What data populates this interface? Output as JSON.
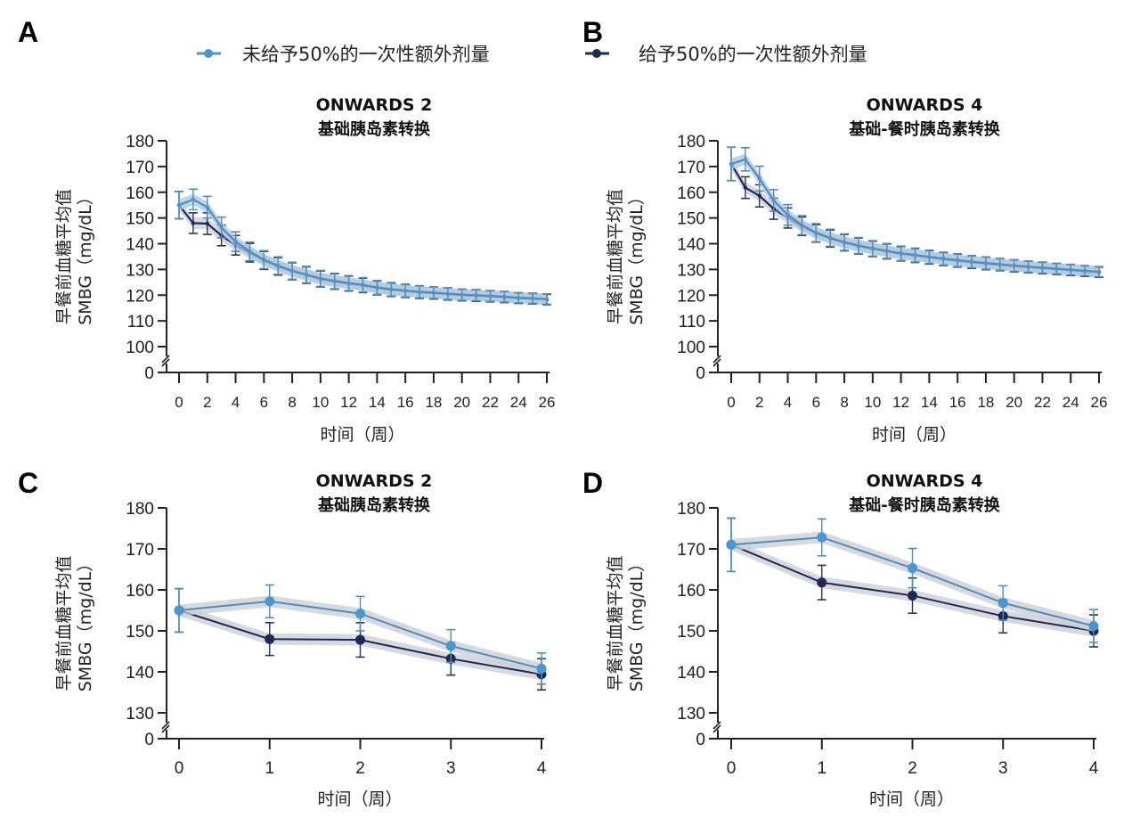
{
  "legend": {
    "items": [
      {
        "label": "未给予50%的一次性额外剂量",
        "color": "#4a96cf",
        "marker": "light-blue-circle"
      },
      {
        "label": "给予50%的一次性额外剂量",
        "color": "#1c2a55",
        "marker": "navy-circle"
      }
    ]
  },
  "colors": {
    "no_dose": "#4a96cf",
    "no_dose_line": "#4f8dbd",
    "dose": "#1c2a55",
    "band": "#c9ccd3",
    "axis": "#222222"
  },
  "chart_data": [
    {
      "panel": "A",
      "type": "line",
      "title": "ONWARDS 2",
      "subtitle": "基础胰岛素转换",
      "xlabel": "时间（周）",
      "ylabel_line1": "早餐前血糖平均值",
      "ylabel_line2": "SMBG（mg/dL）",
      "xlim": [
        0,
        26
      ],
      "ylim": [
        100,
        180
      ],
      "y_break": true,
      "yticks": [
        0,
        100,
        110,
        120,
        130,
        140,
        150,
        160,
        170,
        180
      ],
      "xticks": [
        0,
        2,
        4,
        6,
        8,
        10,
        12,
        14,
        16,
        18,
        20,
        22,
        24,
        26
      ],
      "grid": false,
      "legend_position": "top",
      "x": [
        0,
        1,
        2,
        3,
        4,
        5,
        6,
        7,
        8,
        9,
        10,
        11,
        12,
        13,
        14,
        15,
        16,
        17,
        18,
        19,
        20,
        21,
        22,
        23,
        24,
        25,
        26
      ],
      "series": [
        {
          "name": "未给予50%的一次性额外剂量",
          "values": [
            155,
            157.2,
            154.2,
            146.3,
            140.8,
            137,
            133.8,
            131.5,
            129.5,
            128,
            126.5,
            125.5,
            124.7,
            124,
            123,
            122.3,
            121.8,
            121.3,
            121,
            120.6,
            120.2,
            120,
            119.7,
            119.4,
            119,
            118.8,
            118.5
          ],
          "err": [
            5.3,
            4.0,
            4.2,
            4.0,
            3.8,
            3.6,
            3.5,
            3.4,
            3.3,
            3.2,
            3.1,
            3.0,
            2.9,
            2.8,
            2.7,
            2.6,
            2.5,
            2.4,
            2.3,
            2.3,
            2.2,
            2.2,
            2.1,
            2.1,
            2.0,
            2.0,
            2.0
          ]
        },
        {
          "name": "给予50%的一次性额外剂量",
          "values": [
            155,
            148,
            147.8,
            143.2,
            139.4,
            136.5,
            133.5,
            131.2,
            129.3,
            127.8,
            126.3,
            125.3,
            124.5,
            123.8,
            122.8,
            122.1,
            121.6,
            121.1,
            120.8,
            120.4,
            120,
            119.8,
            119.5,
            119.2,
            118.8,
            118.6,
            118.3
          ],
          "err": [
            5.3,
            4.0,
            4.2,
            4.0,
            3.8,
            3.6,
            3.5,
            3.4,
            3.3,
            3.2,
            3.1,
            3.0,
            2.9,
            2.8,
            2.7,
            2.6,
            2.5,
            2.4,
            2.3,
            2.3,
            2.2,
            2.2,
            2.1,
            2.1,
            2.0,
            2.0,
            2.0
          ]
        }
      ]
    },
    {
      "panel": "B",
      "type": "line",
      "title": "ONWARDS 4",
      "subtitle": "基础-餐时胰岛素转换",
      "xlabel": "时间（周）",
      "ylabel_line1": "早餐前血糖平均值",
      "ylabel_line2": "SMBG（mg/dL）",
      "xlim": [
        0,
        26
      ],
      "ylim": [
        100,
        180
      ],
      "y_break": true,
      "yticks": [
        0,
        100,
        110,
        120,
        130,
        140,
        150,
        160,
        170,
        180
      ],
      "xticks": [
        0,
        2,
        4,
        6,
        8,
        10,
        12,
        14,
        16,
        18,
        20,
        22,
        24,
        26
      ],
      "grid": false,
      "legend_position": "top",
      "x": [
        0,
        1,
        2,
        3,
        4,
        5,
        6,
        7,
        8,
        9,
        10,
        11,
        12,
        13,
        14,
        15,
        16,
        17,
        18,
        19,
        20,
        21,
        22,
        23,
        24,
        25,
        26
      ],
      "series": [
        {
          "name": "未给予50%的一次性额外剂量",
          "values": [
            171,
            172.8,
            165.3,
            156.8,
            151.2,
            147.2,
            144.3,
            142.3,
            140.6,
            139.3,
            138.2,
            137.2,
            136.3,
            135.6,
            134.9,
            134.2,
            133.6,
            133,
            132.5,
            132,
            131.5,
            131.1,
            130.7,
            130.3,
            129.9,
            129.5,
            129.1
          ],
          "err": [
            6.5,
            4.5,
            4.8,
            4.2,
            4.0,
            3.7,
            3.5,
            3.3,
            3.2,
            3.1,
            3.0,
            2.9,
            2.8,
            2.7,
            2.6,
            2.5,
            2.5,
            2.4,
            2.4,
            2.3,
            2.3,
            2.2,
            2.2,
            2.1,
            2.1,
            2.0,
            2.0
          ]
        },
        {
          "name": "给予50%的一次性额外剂量",
          "values": [
            171,
            161.8,
            158.6,
            153.6,
            150,
            146.8,
            144,
            142,
            140.4,
            139.1,
            138,
            137,
            136.1,
            135.4,
            134.7,
            134,
            133.4,
            132.8,
            132.3,
            131.8,
            131.3,
            130.9,
            130.5,
            130.1,
            129.7,
            129.3,
            128.9
          ],
          "err": [
            6.5,
            4.2,
            4.3,
            4.1,
            3.9,
            3.6,
            3.4,
            3.3,
            3.2,
            3.1,
            3.0,
            2.9,
            2.8,
            2.7,
            2.6,
            2.5,
            2.5,
            2.4,
            2.4,
            2.3,
            2.3,
            2.2,
            2.2,
            2.1,
            2.1,
            2.0,
            2.0
          ]
        }
      ]
    },
    {
      "panel": "C",
      "type": "line",
      "title": "ONWARDS 2",
      "subtitle": "基础胰岛素转换",
      "xlabel": "时间（周）",
      "ylabel_line1": "早餐前血糖平均值",
      "ylabel_line2": "SMBG（mg/dL）",
      "xlim": [
        0,
        4
      ],
      "ylim": [
        130,
        180
      ],
      "y_break": true,
      "yticks": [
        0,
        130,
        140,
        150,
        160,
        170,
        180
      ],
      "xticks": [
        0,
        1,
        2,
        3,
        4
      ],
      "grid": false,
      "x": [
        0,
        1,
        2,
        3,
        4
      ],
      "series": [
        {
          "name": "未给予50%的一次性额外剂量",
          "values": [
            155,
            157.2,
            154.2,
            146.3,
            140.8
          ],
          "err": [
            5.3,
            4.0,
            4.2,
            4.0,
            3.8
          ]
        },
        {
          "name": "给予50%的一次性额外剂量",
          "values": [
            155,
            148,
            147.8,
            143.2,
            139.4
          ],
          "err": [
            5.3,
            4.0,
            4.2,
            4.0,
            3.8
          ]
        }
      ]
    },
    {
      "panel": "D",
      "type": "line",
      "title": "ONWARDS 4",
      "subtitle": "基础-餐时胰岛素转换",
      "xlabel": "时间（周）",
      "ylabel_line1": "早餐前血糖平均值",
      "ylabel_line2": "SMBG（mg/dL）",
      "xlim": [
        0,
        4
      ],
      "ylim": [
        130,
        180
      ],
      "y_break": true,
      "yticks": [
        0,
        130,
        140,
        150,
        160,
        170,
        180
      ],
      "xticks": [
        0,
        1,
        2,
        3,
        4
      ],
      "grid": false,
      "x": [
        0,
        1,
        2,
        3,
        4
      ],
      "series": [
        {
          "name": "未给予50%的一次性额外剂量",
          "values": [
            171,
            172.8,
            165.3,
            156.8,
            151.2
          ],
          "err": [
            6.5,
            4.5,
            4.8,
            4.2,
            4.0
          ]
        },
        {
          "name": "给予50%的一次性额外剂量",
          "values": [
            171,
            161.8,
            158.6,
            153.6,
            150
          ],
          "err": [
            6.5,
            4.2,
            4.3,
            4.1,
            3.9
          ]
        }
      ]
    }
  ]
}
